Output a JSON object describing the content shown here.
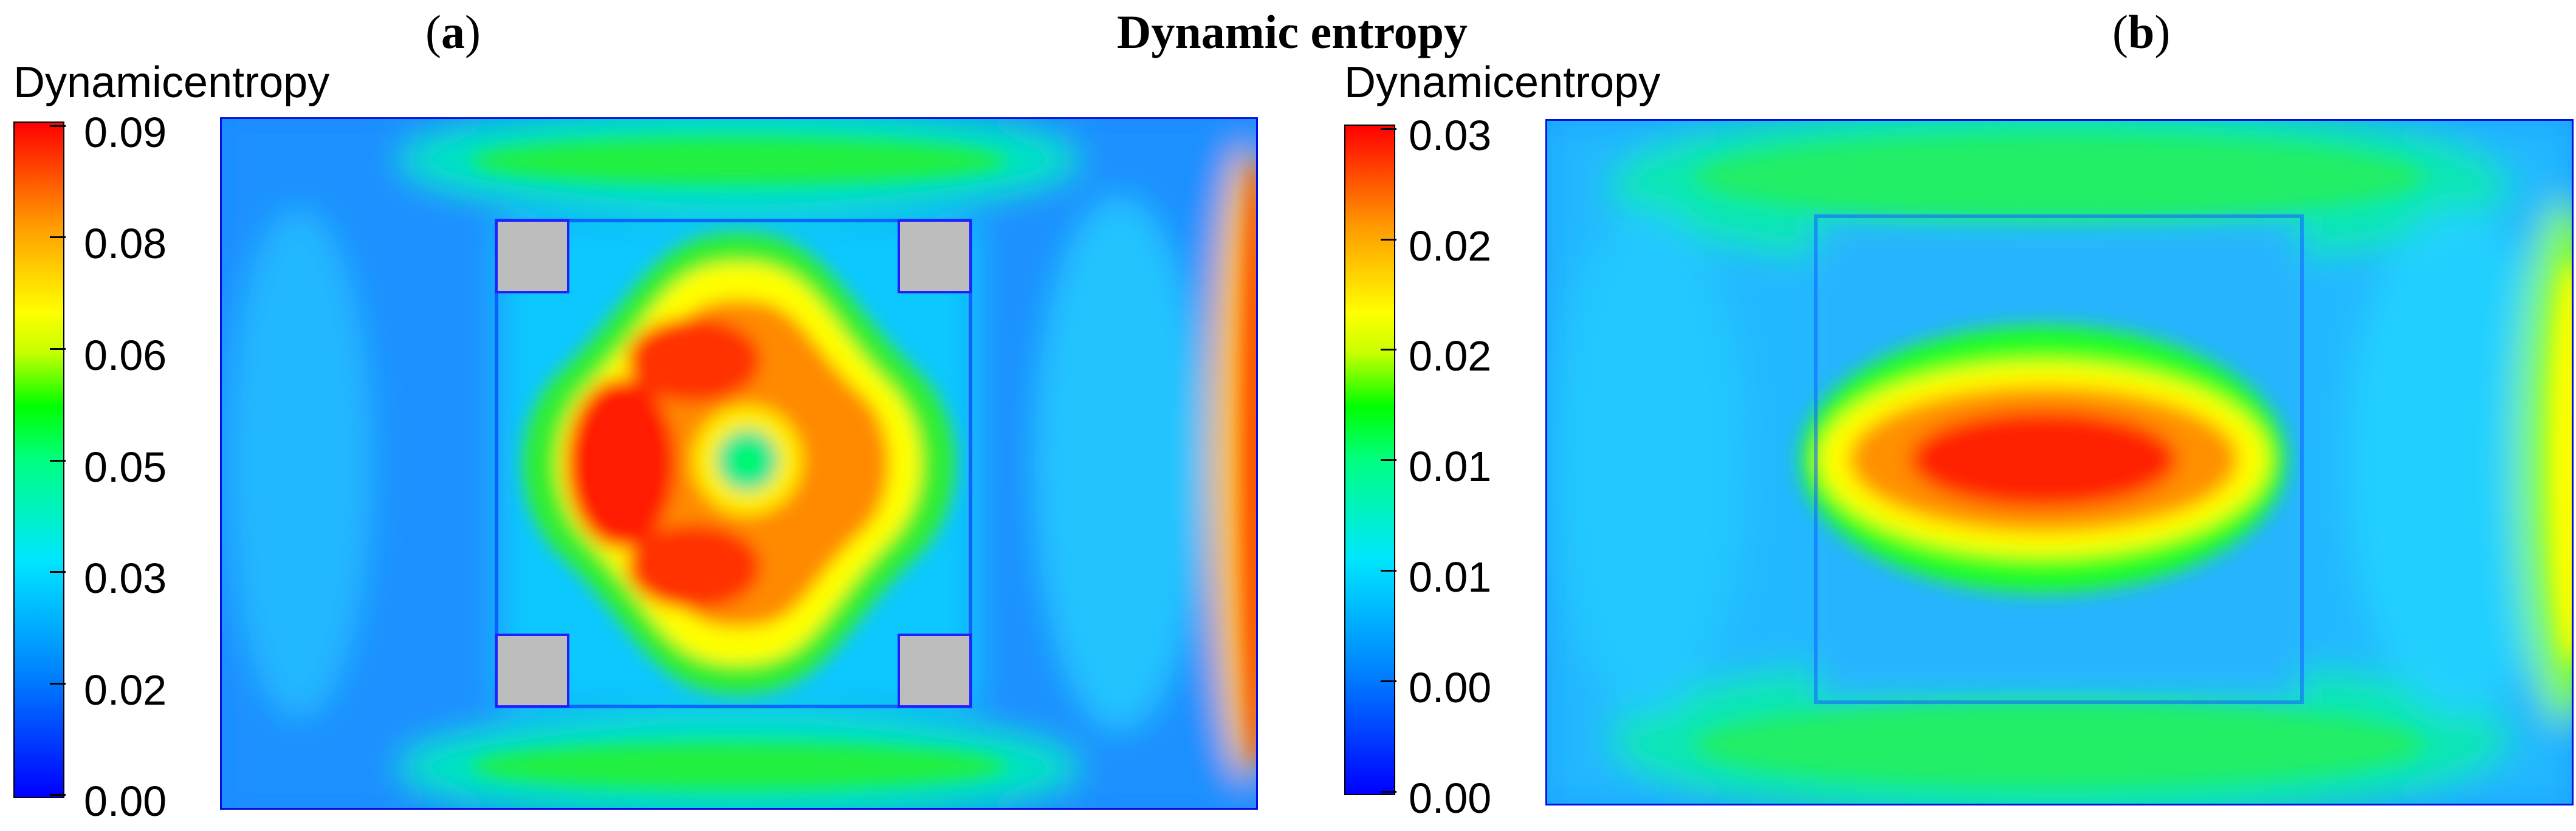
{
  "figure_title": "Dynamic entropy",
  "panels": [
    {
      "letter": "a",
      "colorbar": {
        "label": "Dynamicentropy",
        "ticks": [
          "0.09",
          "0.08",
          "0.06",
          "0.05",
          "0.03",
          "0.02",
          "0.00"
        ],
        "colormap": [
          "#0000ff",
          "#00e5ff",
          "#00ff00",
          "#ffff00",
          "#ff0000"
        ]
      }
    },
    {
      "letter": "b",
      "colorbar": {
        "label": "Dynamicentropy",
        "ticks": [
          "0.03",
          "0.02",
          "0.02",
          "0.01",
          "0.01",
          "0.00",
          "0.00"
        ],
        "colormap": [
          "#0000ff",
          "#00e5ff",
          "#00ff00",
          "#ffff00",
          "#ff0000"
        ]
      }
    }
  ]
}
